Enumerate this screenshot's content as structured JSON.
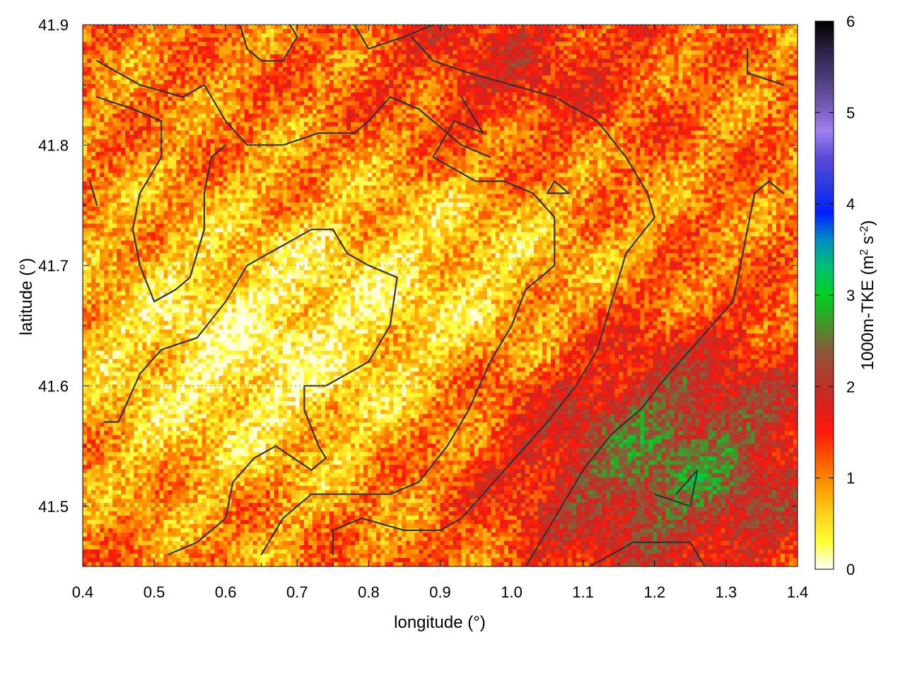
{
  "chart_data": {
    "type": "heatmap",
    "title": "",
    "xlabel": "longitude (°)",
    "ylabel": "latitude (°)",
    "xlim": [
      0.4,
      1.4
    ],
    "ylim": [
      41.45,
      41.9
    ],
    "x_ticks": [
      "0.4",
      "0.5",
      "0.6",
      "0.7",
      "0.8",
      "0.9",
      "1.0",
      "1.1",
      "1.2",
      "1.3",
      "1.4"
    ],
    "y_ticks": [
      "41.5",
      "41.6",
      "41.7",
      "41.8",
      "41.9"
    ],
    "colorbar": {
      "label_prefix": "1000m-TKE (m",
      "label_sup1": "2",
      "label_mid": " s",
      "label_sup2": "-2",
      "label_suffix": ")",
      "range": [
        0,
        6
      ],
      "ticks": [
        "0",
        "1",
        "2",
        "3",
        "4",
        "5",
        "6"
      ],
      "colors": [
        "#ffffff",
        "#ffff33",
        "#ffd21e",
        "#ff9a00",
        "#ff5a00",
        "#ff1a0a",
        "#d8201c",
        "#b23a2c",
        "#8a5a3a",
        "#3f9a2a",
        "#00d020",
        "#00c070",
        "#0090c0",
        "#0020ff",
        "#2a3ae0",
        "#5a4ad8",
        "#a080f0",
        "#7058b0",
        "#4a3a78",
        "#2a2040",
        "#000000"
      ]
    },
    "grid": true,
    "fields": {
      "background_field": "1000m TKE values (gridded, 0–6 m² s⁻²), mostly 0.3–1.5, higher (2–4) in south-east",
      "boundary_lines": "dark grey administrative boundaries overlaid"
    }
  }
}
